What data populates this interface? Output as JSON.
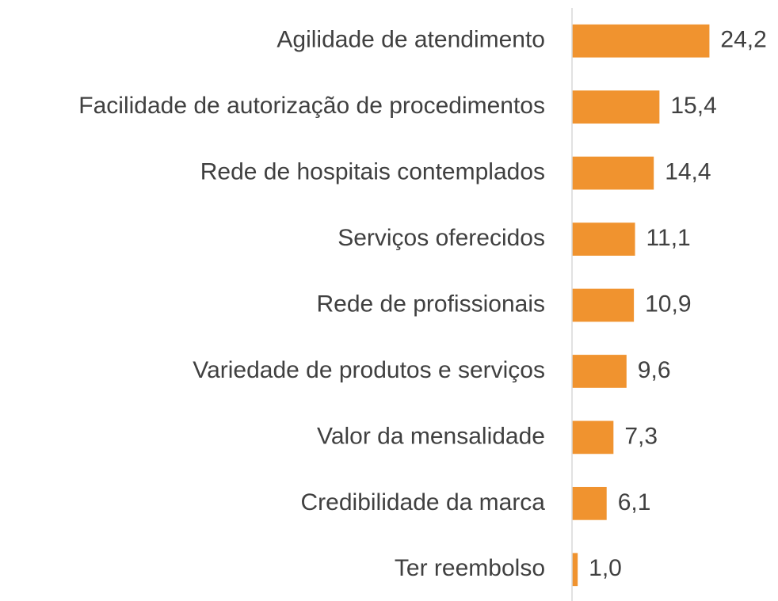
{
  "chart_data": {
    "type": "bar",
    "orientation": "horizontal",
    "categories": [
      "Agilidade de atendimento",
      "Facilidade de autorização de procedimentos",
      "Rede de hospitais contemplados",
      "Serviços oferecidos",
      "Rede de profissionais",
      "Variedade de produtos e serviços",
      "Valor da mensalidade",
      "Credibilidade da marca",
      "Ter reembolso"
    ],
    "values": [
      24.2,
      15.4,
      14.4,
      11.1,
      10.9,
      9.6,
      7.3,
      6.1,
      1.0
    ],
    "value_labels": [
      "24,2",
      "15,4",
      "14,4",
      "11,1",
      "10,9",
      "9,6",
      "7,3",
      "6,1",
      "1,0"
    ],
    "color": "#f0932f",
    "xlim": [
      0,
      30
    ]
  }
}
